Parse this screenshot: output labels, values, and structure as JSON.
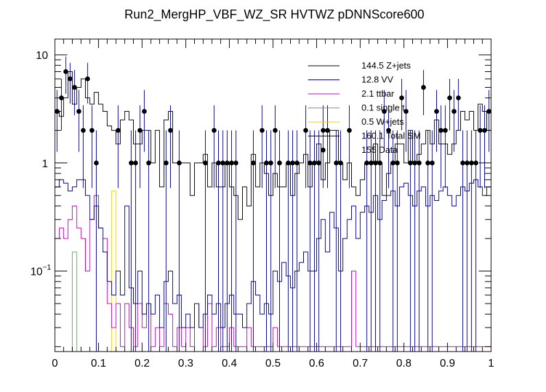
{
  "chart_data": {
    "type": "histogram",
    "title": "Run2_MergHP_VBF_WZ_SR HVTWZ  pDNNScore600",
    "xlabel": "",
    "ylabel": "",
    "xscale": "linear",
    "yscale": "log",
    "xlim": [
      0,
      1
    ],
    "ylim": [
      0.018,
      14
    ],
    "x_ticks": [
      "0",
      "0.1",
      "0.2",
      "0.3",
      "0.4",
      "0.5",
      "0.6",
      "0.7",
      "0.8",
      "0.9",
      "1"
    ],
    "y_ticks": [
      {
        "value": 0.1,
        "base": "10",
        "exp": "−1"
      },
      {
        "value": 1,
        "label": "1"
      },
      {
        "value": 10,
        "label": "10"
      }
    ],
    "bins": 100,
    "series": [
      {
        "name": "Z+jets",
        "yield": "144.5",
        "legend": "144.5 Z+jets",
        "color": "#000000",
        "values": [
          3,
          2.7,
          4,
          7,
          3.5,
          5,
          6,
          4,
          3.5,
          4.5,
          3.5,
          3,
          2.2,
          2,
          1.5,
          2.5,
          3,
          2.5,
          1.5,
          1.5,
          2,
          2,
          1,
          2,
          0.6,
          2.5,
          3,
          1,
          1,
          1,
          1,
          0.5,
          1,
          1,
          1.2,
          0.6,
          1,
          0.6,
          0.6,
          1,
          0.6,
          0.5,
          0.3,
          0.6,
          0.4,
          1.2,
          0.6,
          1,
          0.8,
          0.5,
          0.8,
          0.6,
          0.6,
          1,
          0.5,
          0.8,
          1,
          1.2,
          0.6,
          1,
          1.5,
          0.7,
          1,
          2,
          2,
          1,
          0.7,
          1,
          0.6,
          0.5,
          0.7,
          1,
          1,
          1.5,
          1,
          0.5,
          0.8,
          1,
          1.5,
          1.5,
          1,
          2,
          1,
          1.2,
          1.5,
          2,
          1.5,
          2.5,
          1.5,
          1.5,
          1.2,
          1.5,
          2,
          3,
          2.5,
          3,
          2,
          3.5,
          3,
          2
        ]
      },
      {
        "name": "VV",
        "yield": "12.8",
        "legend": "12.8 VV",
        "color": "#00008b",
        "values": [
          0.6,
          0.7,
          0.65,
          0.55,
          0.6,
          0.7,
          0.7,
          0.5,
          0.3,
          0.4,
          0.25,
          0.15,
          0.08,
          0.06,
          0.1,
          0.06,
          0.4,
          0.07,
          0.05,
          0.1,
          0.04,
          0.05,
          0.04,
          0.06,
          0.03,
          0.08,
          0.1,
          0.05,
          0.06,
          0.03,
          0.04,
          0.03,
          0.05,
          0.03,
          0.04,
          0.06,
          0.04,
          0.05,
          0.03,
          0.05,
          0.06,
          0.04,
          0.04,
          0.03,
          0.05,
          0.08,
          0.06,
          0.04,
          0.05,
          0.04,
          0.1,
          0.08,
          0.12,
          0.09,
          0.07,
          0.1,
          0.12,
          0.15,
          0.1,
          0.1,
          0.2,
          0.3,
          0.15,
          0.35,
          0.25,
          0.1,
          0.2,
          0.3,
          0.4,
          0.2,
          0.35,
          0.4,
          0.35,
          0.5,
          0.3,
          0.45,
          0.5,
          0.55,
          0.4,
          0.6,
          0.65,
          0.5,
          0.4,
          0.55,
          0.6,
          0.4,
          0.5,
          0.45,
          0.55,
          0.6,
          0.5,
          0.4,
          0.5,
          0.6,
          0.55,
          0.65,
          0.7,
          0.6,
          0.5,
          0.6
        ]
      },
      {
        "name": "ttbar",
        "yield": "2.1",
        "legend": "2.1 ttbar",
        "color": "#cc00cc",
        "values": [
          0.2,
          0.25,
          0.2,
          0.3,
          0.4,
          0.25,
          0.2,
          0.1,
          0.3,
          0.5,
          0.25,
          0.2,
          0.05,
          0.03,
          0.05,
          0.02,
          0.05,
          0.03,
          0.02,
          0.05,
          0.03,
          0.05,
          0.02,
          0.03,
          0.02,
          0.05,
          0.04,
          0.02,
          0.03,
          0.02,
          0.03,
          0.02,
          0.05,
          0.03,
          0.02,
          0.05,
          0.02,
          0.03,
          0.02,
          0.02,
          0.03,
          0.02,
          0.02,
          0.02,
          0.03,
          0.02,
          0.02,
          0.02,
          0.02,
          0.02,
          0.03,
          0.02,
          0.02,
          0.02,
          0.02,
          0.02,
          0.02,
          0.02,
          0.02,
          0.02,
          0.02,
          0.02,
          0.02,
          0.02,
          0.02,
          0.02,
          0.02,
          0.02,
          0.1,
          0.02,
          0.02,
          0.02,
          0.02,
          0.02,
          0.02,
          0.02,
          0.02,
          0.02,
          0.02,
          0.02,
          0.02,
          0.02,
          0.02,
          0.02,
          0.02,
          0.02,
          0.02,
          0.02,
          0.02,
          0.02,
          0.02,
          0.02,
          0.02,
          0.02,
          0.02,
          0.02,
          0.02,
          0.02,
          0.02,
          0.02
        ]
      },
      {
        "name": "single t",
        "yield": "0.1",
        "legend": "0.1 single t",
        "color": "#33cc33",
        "values": [
          0,
          0,
          0,
          0,
          0.15,
          0,
          0,
          0,
          0,
          0,
          0,
          0,
          0,
          0,
          0,
          0,
          0,
          0,
          0,
          0,
          0,
          0,
          0,
          0,
          0,
          0,
          0,
          0,
          0,
          0,
          0,
          0,
          0,
          0,
          0,
          0,
          0,
          0,
          0,
          0,
          0,
          0,
          0,
          0,
          0,
          0,
          0,
          0,
          0,
          0,
          0,
          0,
          0,
          0,
          0,
          0,
          0,
          0,
          0,
          0,
          0,
          0,
          0,
          0,
          0,
          0,
          0,
          0,
          0,
          0,
          0,
          0,
          0,
          0,
          0,
          0,
          0,
          0,
          0,
          0,
          0,
          0,
          0,
          0,
          0,
          0,
          0,
          0,
          0,
          0,
          0,
          0,
          0,
          0,
          0,
          0,
          0,
          0,
          0,
          0
        ]
      },
      {
        "name": "W+jets",
        "yield": "0.5",
        "legend": "0.5 W+jets",
        "color": "#ffcc00",
        "values": [
          0,
          0,
          0,
          0,
          0,
          0,
          0,
          0,
          0,
          0,
          0,
          0,
          0,
          0.55,
          0,
          0,
          0,
          0,
          0,
          0,
          0,
          0,
          0,
          0,
          0,
          0,
          0,
          0,
          0,
          0,
          0,
          0,
          0,
          0,
          0,
          0,
          0,
          0,
          0,
          0,
          0,
          0,
          0,
          0,
          0,
          0,
          0,
          0,
          0,
          0,
          0,
          0,
          0,
          0,
          0,
          0,
          0,
          0,
          0,
          0,
          0,
          0,
          0,
          0,
          0,
          0,
          0,
          0,
          0,
          0,
          0,
          0,
          0,
          0,
          0,
          0,
          0,
          0,
          0,
          0,
          0,
          0,
          0,
          0,
          0,
          0,
          0,
          0,
          0,
          0,
          0,
          0,
          0,
          0,
          0,
          0,
          0,
          0,
          0,
          0
        ]
      }
    ],
    "total": {
      "name": "Total SM",
      "yield": "160.1",
      "legend": "160.1 Total SM",
      "color": "#000000"
    },
    "data": {
      "name": "Data",
      "yield": "155",
      "legend": "155 Data",
      "color": "#000000",
      "x": [
        0.005,
        0.015,
        0.025,
        0.035,
        0.045,
        0.055,
        0.065,
        0.075,
        0.085,
        0.095,
        0.105,
        0.115,
        0.125,
        0.135,
        0.145,
        0.155,
        0.165,
        0.175,
        0.185,
        0.195,
        0.205,
        0.215,
        0.225,
        0.235,
        0.245,
        0.255,
        0.265,
        0.275,
        0.285,
        0.295,
        0.305,
        0.315,
        0.325,
        0.335,
        0.345,
        0.355,
        0.365,
        0.375,
        0.385,
        0.395,
        0.405,
        0.415,
        0.425,
        0.435,
        0.445,
        0.455,
        0.465,
        0.475,
        0.485,
        0.495,
        0.505,
        0.515,
        0.525,
        0.535,
        0.545,
        0.555,
        0.565,
        0.575,
        0.585,
        0.595,
        0.605,
        0.615,
        0.625,
        0.635,
        0.645,
        0.655,
        0.665,
        0.675,
        0.685,
        0.695,
        0.705,
        0.715,
        0.725,
        0.735,
        0.745,
        0.755,
        0.765,
        0.775,
        0.785,
        0.795,
        0.805,
        0.815,
        0.825,
        0.835,
        0.845,
        0.855,
        0.865,
        0.875,
        0.885,
        0.895,
        0.905,
        0.915,
        0.925,
        0.935,
        0.945,
        0.955,
        0.965,
        0.975,
        0.985,
        0.995
      ],
      "y": [
        3,
        4,
        7,
        6,
        5,
        3,
        2,
        6,
        2,
        1,
        0,
        0,
        0,
        0,
        2,
        0,
        0,
        1,
        1,
        2,
        3,
        1,
        0,
        0,
        0,
        1,
        2,
        0,
        1,
        0,
        0,
        0,
        0,
        0,
        1,
        0,
        2,
        1,
        1,
        1,
        1,
        1,
        0,
        0,
        0,
        1,
        0,
        2,
        1,
        1,
        2,
        1,
        0,
        1,
        1,
        1,
        0,
        2,
        1,
        1,
        1,
        2,
        2,
        0,
        1,
        1,
        0,
        2,
        0,
        0,
        0,
        1,
        1,
        1,
        1,
        3,
        2,
        1,
        1,
        4,
        3,
        1,
        1,
        1,
        5,
        1,
        1,
        3,
        2,
        2,
        4,
        3,
        4,
        1,
        1,
        1,
        1,
        2,
        2,
        3
      ]
    },
    "legend_position": "top-right"
  }
}
